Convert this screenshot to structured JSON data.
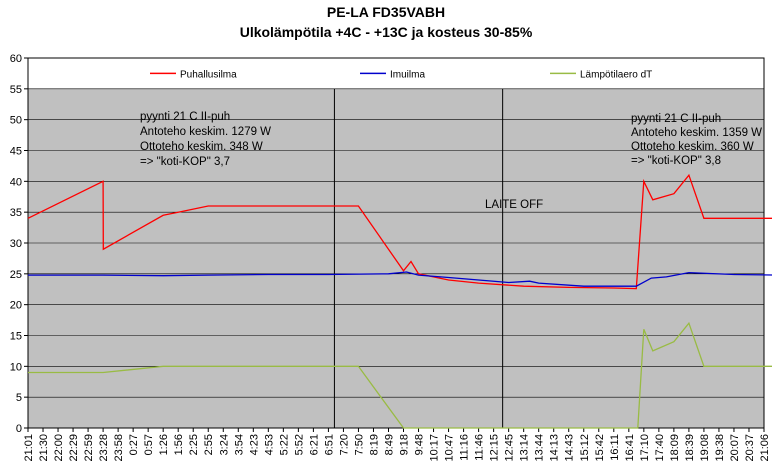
{
  "chart_data": {
    "type": "line",
    "title": "PE-LA FD35VABH",
    "subtitle": "Ulkolämpötila +4C - +13C ja kosteus 30-85%",
    "ylim": [
      0,
      60
    ],
    "yticks": [
      0,
      5,
      10,
      15,
      20,
      25,
      30,
      35,
      40,
      45,
      50,
      55,
      60
    ],
    "xticks": [
      "21:01",
      "21:30",
      "22:00",
      "22:29",
      "22:59",
      "23:28",
      "23:58",
      "0:27",
      "0:57",
      "1:26",
      "1:56",
      "2:25",
      "2:55",
      "3:24",
      "3:54",
      "4:23",
      "4:53",
      "5:22",
      "5:52",
      "6:21",
      "6:51",
      "7:20",
      "7:50",
      "8:19",
      "8:49",
      "9:18",
      "9:48",
      "10:17",
      "10:47",
      "11:16",
      "11:46",
      "12:15",
      "12:45",
      "13:14",
      "13:44",
      "14:13",
      "14:43",
      "15:12",
      "15:42",
      "16:11",
      "16:41",
      "17:10",
      "17:40",
      "18:09",
      "18:39",
      "19:08",
      "19:38",
      "20:07",
      "20:37",
      "21:06"
    ],
    "legend": [
      "Puhallusilma",
      "Imuilma",
      "Lämpötilaero dT"
    ],
    "legend_position": "top",
    "grid": true,
    "series": [
      {
        "name": "Puhallusilma",
        "color": "#ff0000",
        "points": [
          [
            0,
            34
          ],
          [
            5,
            40
          ],
          [
            5.01,
            29
          ],
          [
            9,
            34.5
          ],
          [
            10,
            35
          ],
          [
            12,
            36
          ],
          [
            17,
            36
          ],
          [
            22,
            36
          ],
          [
            25,
            25.5
          ],
          [
            25.5,
            27
          ],
          [
            26,
            25
          ],
          [
            28,
            24
          ],
          [
            30,
            23.5
          ],
          [
            33,
            23
          ],
          [
            36,
            22.8
          ],
          [
            39,
            22.7
          ],
          [
            40.5,
            22.6
          ],
          [
            41,
            40
          ],
          [
            41.6,
            37
          ],
          [
            43,
            38
          ],
          [
            44,
            41
          ],
          [
            45,
            34
          ],
          [
            47,
            34
          ],
          [
            50,
            34
          ]
        ]
      },
      {
        "name": "Imuilma",
        "color": "#0000cc",
        "points": [
          [
            0,
            24.8
          ],
          [
            5,
            24.8
          ],
          [
            9,
            24.7
          ],
          [
            12,
            24.8
          ],
          [
            16,
            24.9
          ],
          [
            20,
            24.9
          ],
          [
            24,
            25.0
          ],
          [
            25.2,
            25.3
          ],
          [
            26,
            24.8
          ],
          [
            28,
            24.4
          ],
          [
            30,
            24.0
          ],
          [
            32,
            23.6
          ],
          [
            33.4,
            23.8
          ],
          [
            34,
            23.5
          ],
          [
            37,
            23.0
          ],
          [
            40.5,
            23.0
          ],
          [
            41.5,
            24.3
          ],
          [
            42.5,
            24.5
          ],
          [
            44,
            25.2
          ],
          [
            47,
            24.9
          ],
          [
            50,
            24.8
          ]
        ]
      },
      {
        "name": "Lämpötilaero dT",
        "color": "#99bb44",
        "points": [
          [
            0,
            9
          ],
          [
            5,
            9
          ],
          [
            9,
            10
          ],
          [
            12,
            10
          ],
          [
            17,
            10
          ],
          [
            22,
            10
          ],
          [
            25,
            0
          ],
          [
            40.6,
            0
          ],
          [
            41,
            16
          ],
          [
            41.6,
            12.5
          ],
          [
            43,
            14
          ],
          [
            44,
            17
          ],
          [
            45,
            10
          ],
          [
            47,
            10
          ],
          [
            50,
            10
          ]
        ]
      }
    ],
    "vlines_x": [
      20.4,
      31.6
    ],
    "annotations": [
      {
        "text": "pyynti 21 C II-puh"
      },
      {
        "text": "Antoteho keskim. 1279 W"
      },
      {
        "text": "Ottoteho keskim. 348 W"
      },
      {
        "text": "=> \"koti-KOP\" 3,7"
      },
      {
        "text": "LAITE OFF"
      },
      {
        "text": "pyynti 21 C II-puh"
      },
      {
        "text": "Antoteho keskim. 1359 W"
      },
      {
        "text": "Ottoteho keskim. 360 W"
      },
      {
        "text": "=> \"koti-KOP\" 3,8"
      }
    ]
  }
}
